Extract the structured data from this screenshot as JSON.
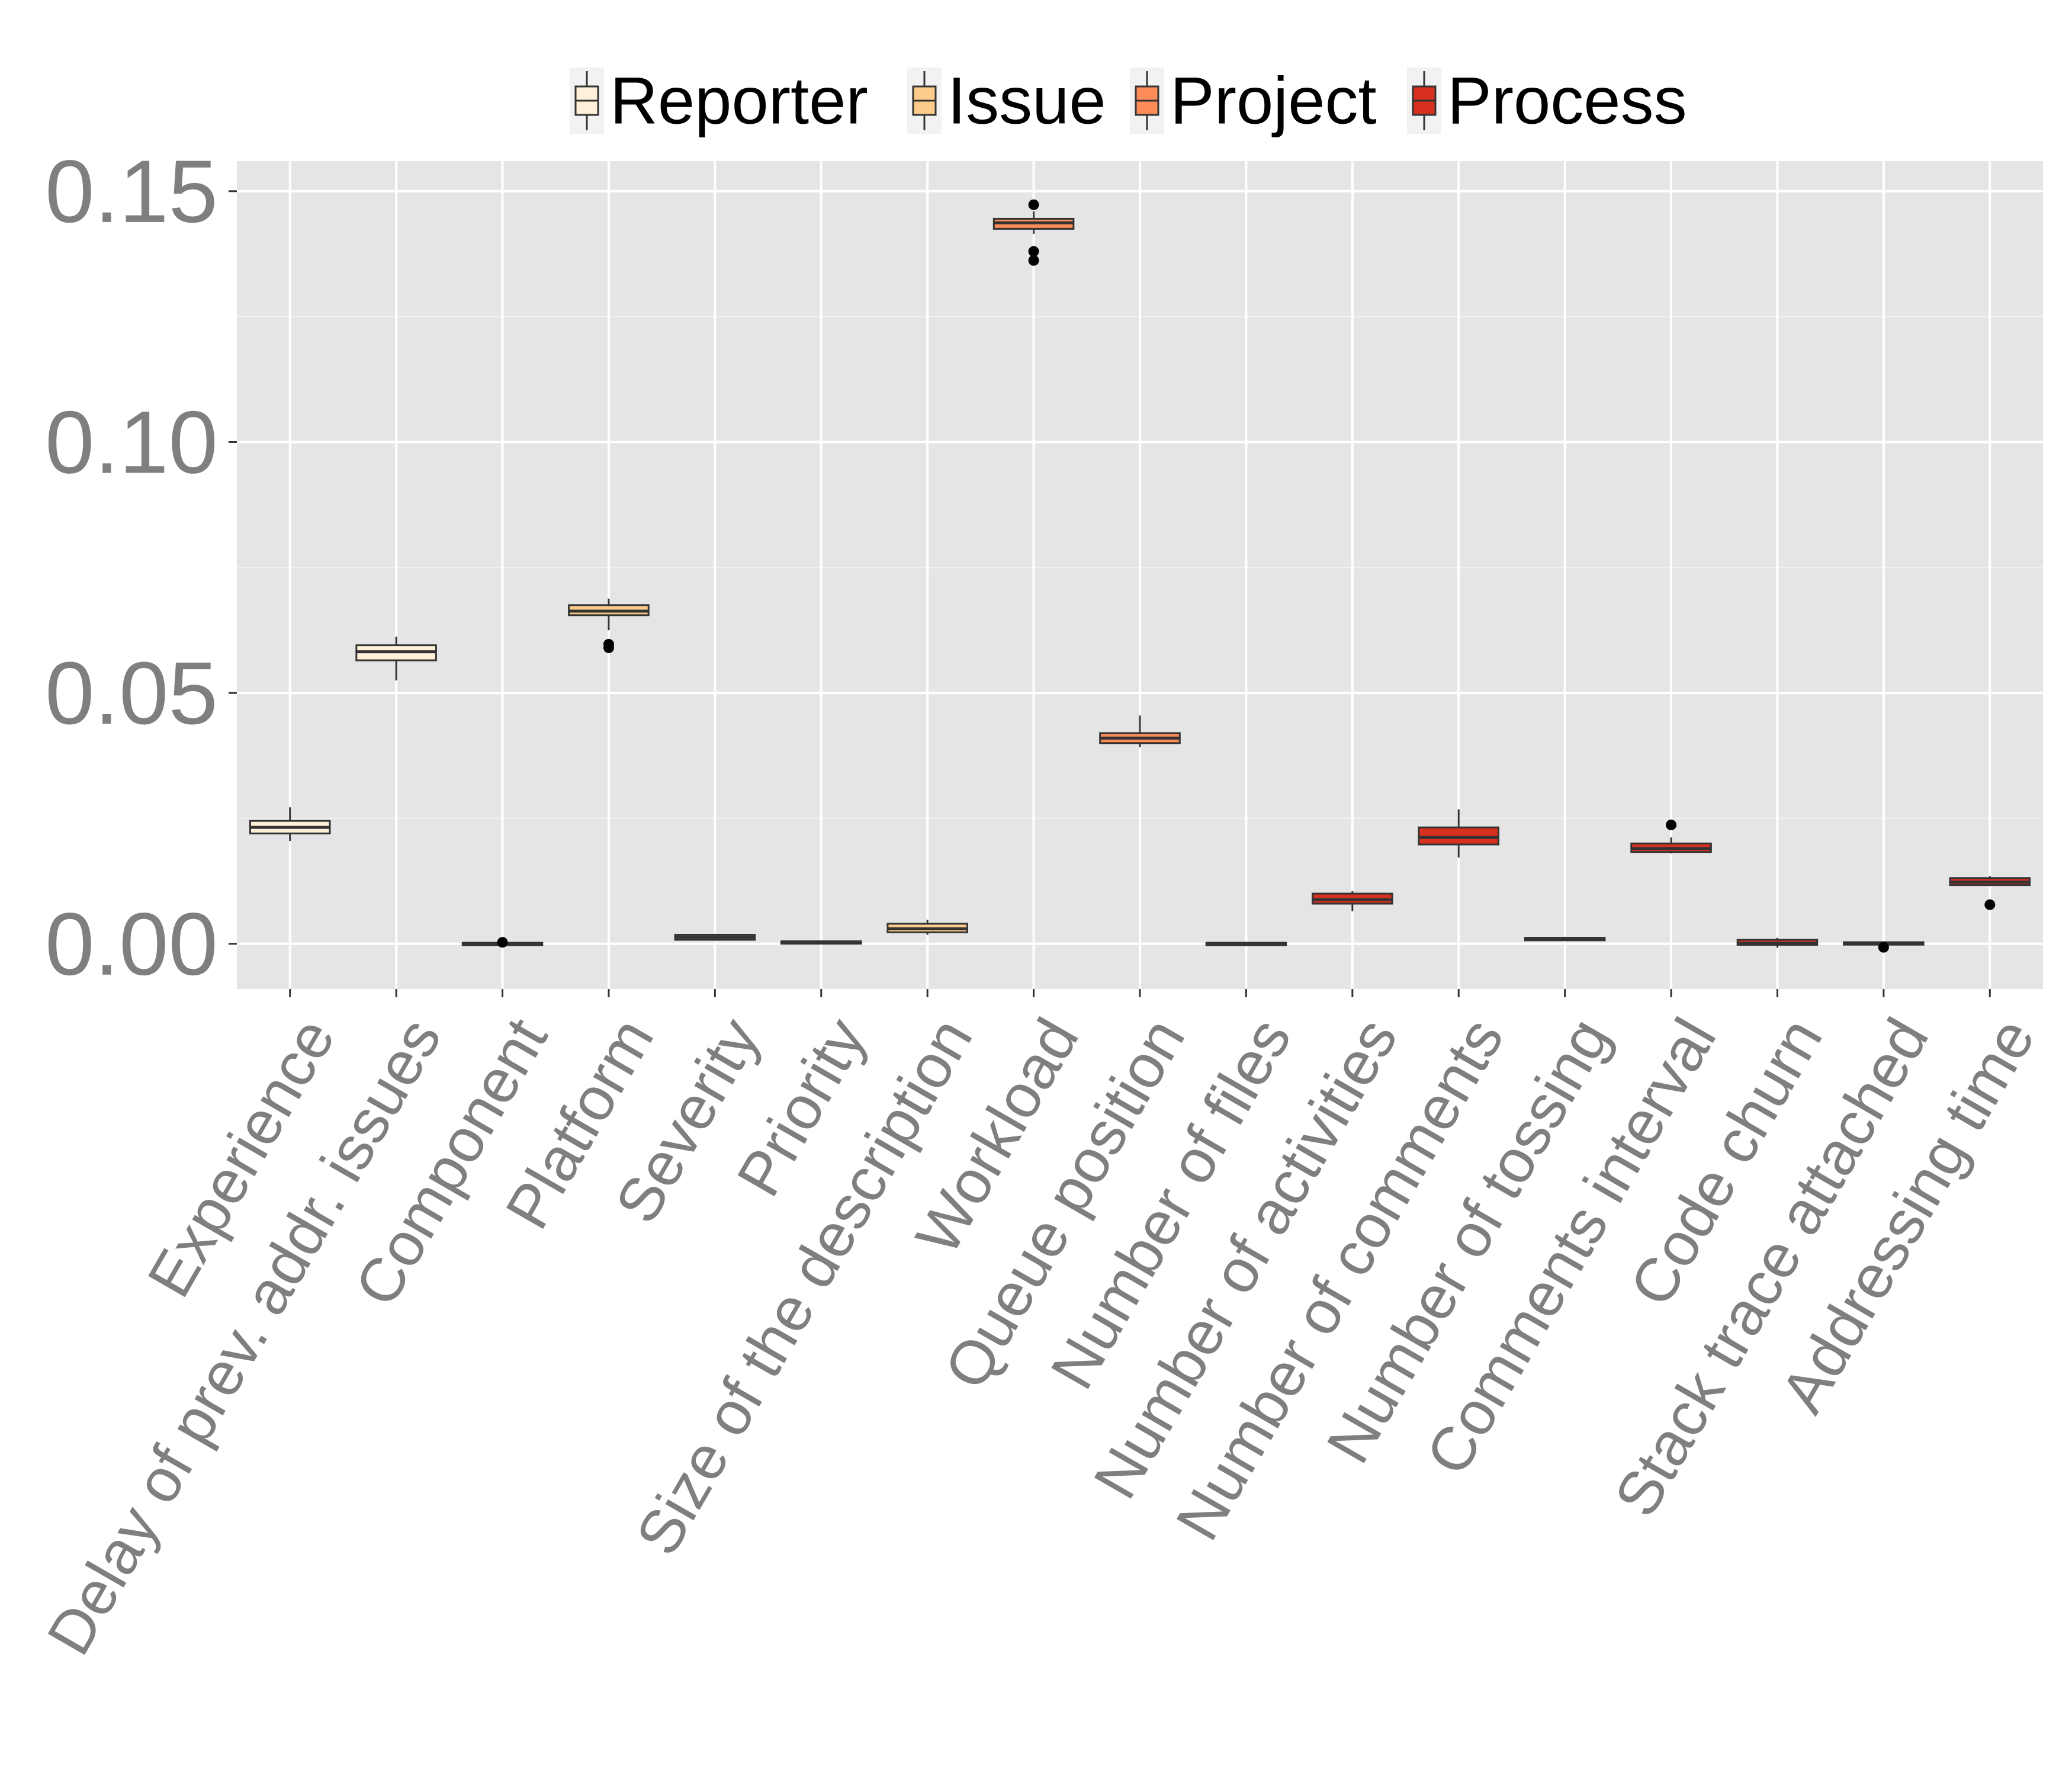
{
  "chart_data": {
    "type": "box",
    "legend": {
      "position": "top",
      "entries": [
        {
          "name": "Reporter",
          "color": "#FEF0D9"
        },
        {
          "name": "Issue",
          "color": "#FDCC8A"
        },
        {
          "name": "Project",
          "color": "#FC8D59"
        },
        {
          "name": "Process",
          "color": "#D7301F"
        }
      ]
    },
    "ylim": [
      -0.009,
      0.156
    ],
    "yticks": [
      0.0,
      0.05,
      0.1,
      0.15
    ],
    "ytick_labels": [
      "0.00",
      "0.05",
      "0.10",
      "0.15"
    ],
    "grid": true,
    "categories": [
      {
        "label": "Experience",
        "group": "Reporter",
        "min": 0.0205,
        "q1": 0.022,
        "median": 0.0232,
        "q3": 0.0245,
        "max": 0.0272,
        "outliers": []
      },
      {
        "label": "Delay of prev. addr. issues",
        "group": "Reporter",
        "min": 0.0525,
        "q1": 0.0565,
        "median": 0.0582,
        "q3": 0.0595,
        "max": 0.0612,
        "outliers": []
      },
      {
        "label": "Component",
        "group": "Issue",
        "min": -0.0002,
        "q1": -0.0001,
        "median": 0.0001,
        "q3": 0.0002,
        "max": 0.0003,
        "outliers": [
          0.0003
        ]
      },
      {
        "label": "Platform",
        "group": "Issue",
        "min": 0.0625,
        "q1": 0.0655,
        "median": 0.0663,
        "q3": 0.0675,
        "max": 0.0688,
        "outliers": [
          0.059,
          0.0597
        ]
      },
      {
        "label": "Severity",
        "group": "Issue",
        "min": 0.0006,
        "q1": 0.0008,
        "median": 0.0013,
        "q3": 0.0018,
        "max": 0.002,
        "outliers": []
      },
      {
        "label": "Priority",
        "group": "Issue",
        "min": 0.0002,
        "q1": 0.0003,
        "median": 0.0004,
        "q3": 0.0005,
        "max": 0.0006,
        "outliers": []
      },
      {
        "label": "Size of the description",
        "group": "Issue",
        "min": 0.0018,
        "q1": 0.0023,
        "median": 0.003,
        "q3": 0.004,
        "max": 0.0048,
        "outliers": []
      },
      {
        "label": "Workload",
        "group": "Project",
        "min": 0.1415,
        "q1": 0.1425,
        "median": 0.1437,
        "q3": 0.1445,
        "max": 0.146,
        "outliers": [
          0.1473,
          0.138,
          0.1362
        ]
      },
      {
        "label": "Queue position",
        "group": "Project",
        "min": 0.0392,
        "q1": 0.04,
        "median": 0.041,
        "q3": 0.042,
        "max": 0.0455,
        "outliers": []
      },
      {
        "label": "Number of files",
        "group": "Process",
        "min": -0.0002,
        "q1": -0.0001,
        "median": 0.0001,
        "q3": 0.0002,
        "max": 0.0003,
        "outliers": []
      },
      {
        "label": "Number of activities",
        "group": "Process",
        "min": 0.0065,
        "q1": 0.008,
        "median": 0.0088,
        "q3": 0.01,
        "max": 0.0105,
        "outliers": []
      },
      {
        "label": "Number of comments",
        "group": "Process",
        "min": 0.0172,
        "q1": 0.0198,
        "median": 0.0212,
        "q3": 0.0232,
        "max": 0.0268,
        "outliers": []
      },
      {
        "label": "Number of tossing",
        "group": "Process",
        "min": 0.0006,
        "q1": 0.0007,
        "median": 0.001,
        "q3": 0.0012,
        "max": 0.0014,
        "outliers": []
      },
      {
        "label": "Comments interval",
        "group": "Process",
        "min": 0.018,
        "q1": 0.0183,
        "median": 0.019,
        "q3": 0.02,
        "max": 0.0212,
        "outliers": [
          0.0237
        ]
      },
      {
        "label": "Code churn",
        "group": "Process",
        "min": -0.0008,
        "q1": -0.0002,
        "median": 0.0001,
        "q3": 0.0008,
        "max": 0.0012,
        "outliers": []
      },
      {
        "label": "Stack trace attached",
        "group": "Process",
        "min": -0.0002,
        "q1": -0.0001,
        "median": 0.0002,
        "q3": 0.0003,
        "max": 0.0004,
        "outliers": [
          -0.0007
        ]
      },
      {
        "label": "Addressing time",
        "group": "Process",
        "min": 0.0115,
        "q1": 0.0117,
        "median": 0.0123,
        "q3": 0.0131,
        "max": 0.0135,
        "outliers": [
          0.0078
        ]
      }
    ]
  }
}
